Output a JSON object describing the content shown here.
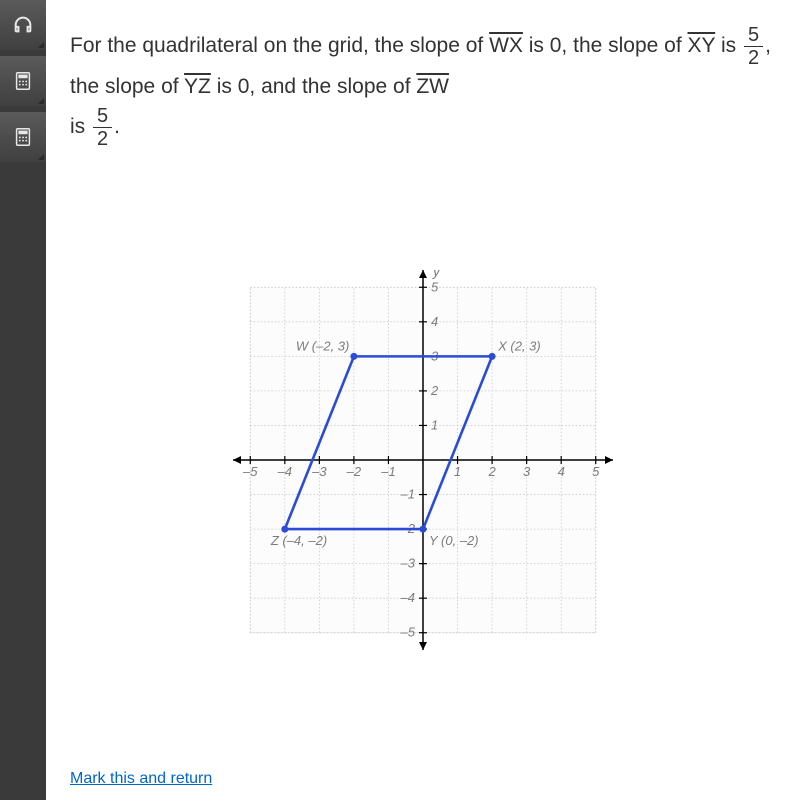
{
  "question": {
    "part1_pre": "For the quadrilateral on the grid, the slope of ",
    "seg1": "WX",
    "part1_post": " is 0, the slope of ",
    "seg2": "XY",
    "part2_post": " is ",
    "frac1_num": "5",
    "frac1_den": "2",
    "part3_pre": ", the slope of ",
    "seg3": "YZ",
    "part3_post": " is 0, and the slope of ",
    "seg4": "ZW",
    "part4_pre": " is ",
    "frac2_num": "5",
    "frac2_den": "2",
    "period": "."
  },
  "graph": {
    "xmin": -5.5,
    "xmax": 5.5,
    "ymin": -5.5,
    "ymax": 5.5,
    "tick_min": -5,
    "tick_max": 5,
    "axis_label_x": "x",
    "axis_label_y": "y",
    "grid_color": "#c9c9c9",
    "axis_color": "#000000",
    "shape_color": "#2b4bd6",
    "shape_stroke_width": 2.6,
    "tick_color": "#7b7b7b",
    "tick_fontsize": 13,
    "point_label_color": "#7b7b7b",
    "point_label_fontsize": 13,
    "background": "#ffffff",
    "grid_bg": "#fcfcfc",
    "points": {
      "W": {
        "x": -2,
        "y": 3,
        "label": "W (–2, 3)",
        "label_dx": -58,
        "label_dy": -6
      },
      "X": {
        "x": 2,
        "y": 3,
        "label": "X (2, 3)",
        "label_dx": 6,
        "label_dy": -6
      },
      "Y": {
        "x": 0,
        "y": -2,
        "label": "Y (0, –2)",
        "label_dx": 6,
        "label_dy": 16
      },
      "Z": {
        "x": -4,
        "y": -2,
        "label": "Z (–4, –2)",
        "label_dx": -14,
        "label_dy": 16
      }
    }
  },
  "footer": {
    "mark_return": "Mark this and return"
  }
}
